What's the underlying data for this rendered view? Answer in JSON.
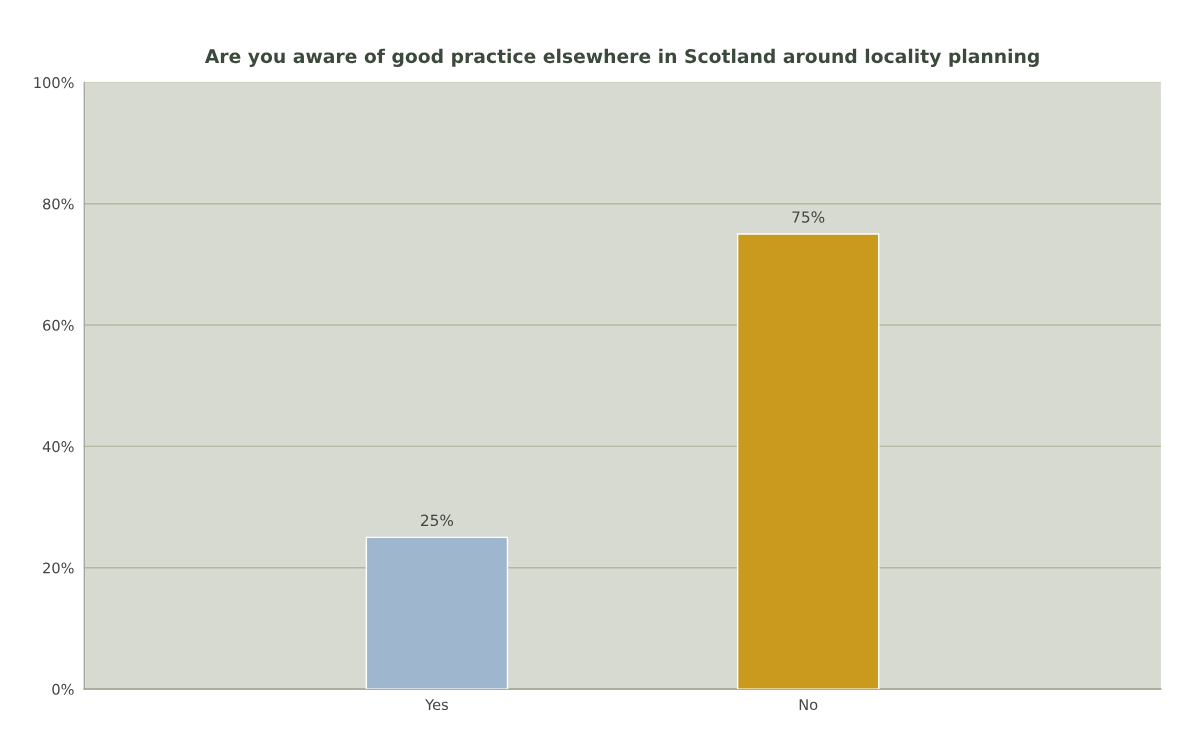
{
  "chart_data": {
    "type": "bar",
    "title": "Are you aware of good practice elsewhere in Scotland around locality planning",
    "categories": [
      "Yes",
      "No"
    ],
    "values": [
      25,
      75
    ],
    "colors": [
      "#9fb6cf",
      "#c99a1e"
    ],
    "value_labels": [
      "25%",
      "75%"
    ],
    "ylim": [
      0,
      100
    ],
    "yticks": [
      {
        "value": 0,
        "label": "0%"
      },
      {
        "value": 20,
        "label": "20%"
      },
      {
        "value": 40,
        "label": "40%"
      },
      {
        "value": 60,
        "label": "60%"
      },
      {
        "value": 80,
        "label": "80%"
      },
      {
        "value": 100,
        "label": "100%"
      }
    ],
    "grid": "y"
  }
}
